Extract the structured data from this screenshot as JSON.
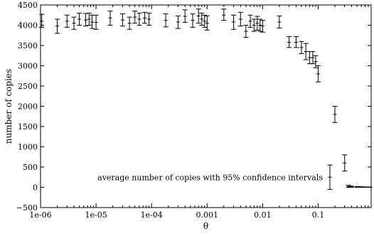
{
  "chart_data": {
    "type": "scatter",
    "title": "",
    "xlabel": "θ",
    "ylabel": "number of copies",
    "xscale": "log",
    "xlim": [
      1e-06,
      0.9
    ],
    "ylim": [
      -500,
      4500
    ],
    "grid": false,
    "legend_position": "bottom-right",
    "x_ticks": [
      1e-06,
      1e-05,
      0.0001,
      0.001,
      0.01,
      0.1
    ],
    "x_tick_labels": [
      "1e-06",
      "1e-05",
      "1e-04",
      "0.001",
      "0.01",
      "0.1"
    ],
    "y_ticks": [
      -500,
      0,
      500,
      1000,
      1500,
      2000,
      2500,
      3000,
      3500,
      4000,
      4500
    ],
    "y_tick_labels": [
      "−500",
      "0",
      "500",
      "1000",
      "1500",
      "2000",
      "2500",
      "3000",
      "3500",
      "4000",
      "4500"
    ],
    "series": [
      {
        "name": "average number of copies with 95% confidence intervals",
        "marker": "plus",
        "color": "#000000",
        "points": [
          {
            "x": 1.05e-06,
            "y": 4100,
            "lo": 3950,
            "hi": 4270
          },
          {
            "x": 2e-06,
            "y": 3980,
            "lo": 3800,
            "hi": 4150
          },
          {
            "x": 3e-06,
            "y": 4100,
            "lo": 3950,
            "hi": 4250
          },
          {
            "x": 4e-06,
            "y": 4050,
            "lo": 3900,
            "hi": 4200
          },
          {
            "x": 5e-06,
            "y": 4150,
            "lo": 4000,
            "hi": 4300
          },
          {
            "x": 6.5e-06,
            "y": 4130,
            "lo": 3980,
            "hi": 4290
          },
          {
            "x": 7.5e-06,
            "y": 4150,
            "lo": 4000,
            "hi": 4300
          },
          {
            "x": 8.5e-06,
            "y": 4080,
            "lo": 3920,
            "hi": 4250
          },
          {
            "x": 1e-05,
            "y": 4070,
            "lo": 3900,
            "hi": 4250
          },
          {
            "x": 1.8e-05,
            "y": 4180,
            "lo": 4000,
            "hi": 4350
          },
          {
            "x": 3e-05,
            "y": 4130,
            "lo": 3980,
            "hi": 4280
          },
          {
            "x": 4e-05,
            "y": 4050,
            "lo": 3900,
            "hi": 4200
          },
          {
            "x": 5e-05,
            "y": 4200,
            "lo": 4050,
            "hi": 4350
          },
          {
            "x": 6e-05,
            "y": 4150,
            "lo": 4000,
            "hi": 4300
          },
          {
            "x": 7.5e-05,
            "y": 4180,
            "lo": 4050,
            "hi": 4320
          },
          {
            "x": 9e-05,
            "y": 4150,
            "lo": 4000,
            "hi": 4300
          },
          {
            "x": 0.00018,
            "y": 4120,
            "lo": 3960,
            "hi": 4280
          },
          {
            "x": 0.0003,
            "y": 4080,
            "lo": 3920,
            "hi": 4230
          },
          {
            "x": 0.0004,
            "y": 4220,
            "lo": 4070,
            "hi": 4380
          },
          {
            "x": 0.00055,
            "y": 4120,
            "lo": 3950,
            "hi": 4280
          },
          {
            "x": 0.0007,
            "y": 4230,
            "lo": 4050,
            "hi": 4400
          },
          {
            "x": 0.0008,
            "y": 4150,
            "lo": 4000,
            "hi": 4300
          },
          {
            "x": 0.0009,
            "y": 4100,
            "lo": 3950,
            "hi": 4250
          },
          {
            "x": 0.001,
            "y": 4050,
            "lo": 3880,
            "hi": 4230
          },
          {
            "x": 0.002,
            "y": 4250,
            "lo": 4120,
            "hi": 4400
          },
          {
            "x": 0.003,
            "y": 4080,
            "lo": 3900,
            "hi": 4250
          },
          {
            "x": 0.004,
            "y": 4150,
            "lo": 3980,
            "hi": 4320
          },
          {
            "x": 0.005,
            "y": 3850,
            "lo": 3700,
            "hi": 4000
          },
          {
            "x": 0.006,
            "y": 4100,
            "lo": 3950,
            "hi": 4250
          },
          {
            "x": 0.007,
            "y": 4000,
            "lo": 3850,
            "hi": 4150
          },
          {
            "x": 0.008,
            "y": 4050,
            "lo": 3880,
            "hi": 4220
          },
          {
            "x": 0.009,
            "y": 4000,
            "lo": 3850,
            "hi": 4150
          },
          {
            "x": 0.01,
            "y": 3980,
            "lo": 3830,
            "hi": 4120
          },
          {
            "x": 0.02,
            "y": 4080,
            "lo": 3930,
            "hi": 4230
          },
          {
            "x": 0.03,
            "y": 3580,
            "lo": 3450,
            "hi": 3720
          },
          {
            "x": 0.04,
            "y": 3580,
            "lo": 3450,
            "hi": 3720
          },
          {
            "x": 0.05,
            "y": 3450,
            "lo": 3300,
            "hi": 3600
          },
          {
            "x": 0.06,
            "y": 3350,
            "lo": 3150,
            "hi": 3550
          },
          {
            "x": 0.07,
            "y": 3200,
            "lo": 3050,
            "hi": 3350
          },
          {
            "x": 0.08,
            "y": 3200,
            "lo": 3050,
            "hi": 3350
          },
          {
            "x": 0.09,
            "y": 3100,
            "lo": 2950,
            "hi": 3250
          },
          {
            "x": 0.1,
            "y": 2800,
            "lo": 2600,
            "hi": 3000
          },
          {
            "x": 0.2,
            "y": 1800,
            "lo": 1600,
            "hi": 2000
          },
          {
            "x": 0.3,
            "y": 600,
            "lo": 400,
            "hi": 800
          },
          {
            "x": 0.35,
            "y": 20,
            "lo": 0,
            "hi": 50
          },
          {
            "x": 0.4,
            "y": 10,
            "lo": 0,
            "hi": 30
          },
          {
            "x": 0.5,
            "y": 5,
            "lo": 0,
            "hi": 20
          },
          {
            "x": 0.6,
            "y": 3,
            "lo": 0,
            "hi": 15
          },
          {
            "x": 0.7,
            "y": 2,
            "lo": 0,
            "hi": 10
          },
          {
            "x": 0.8,
            "y": 1,
            "lo": 0,
            "hi": 8
          },
          {
            "x": 0.85,
            "y": 0,
            "lo": 0,
            "hi": 5
          }
        ]
      }
    ],
    "legend_sample": {
      "y": 250,
      "lo": -50,
      "hi": 550
    }
  }
}
